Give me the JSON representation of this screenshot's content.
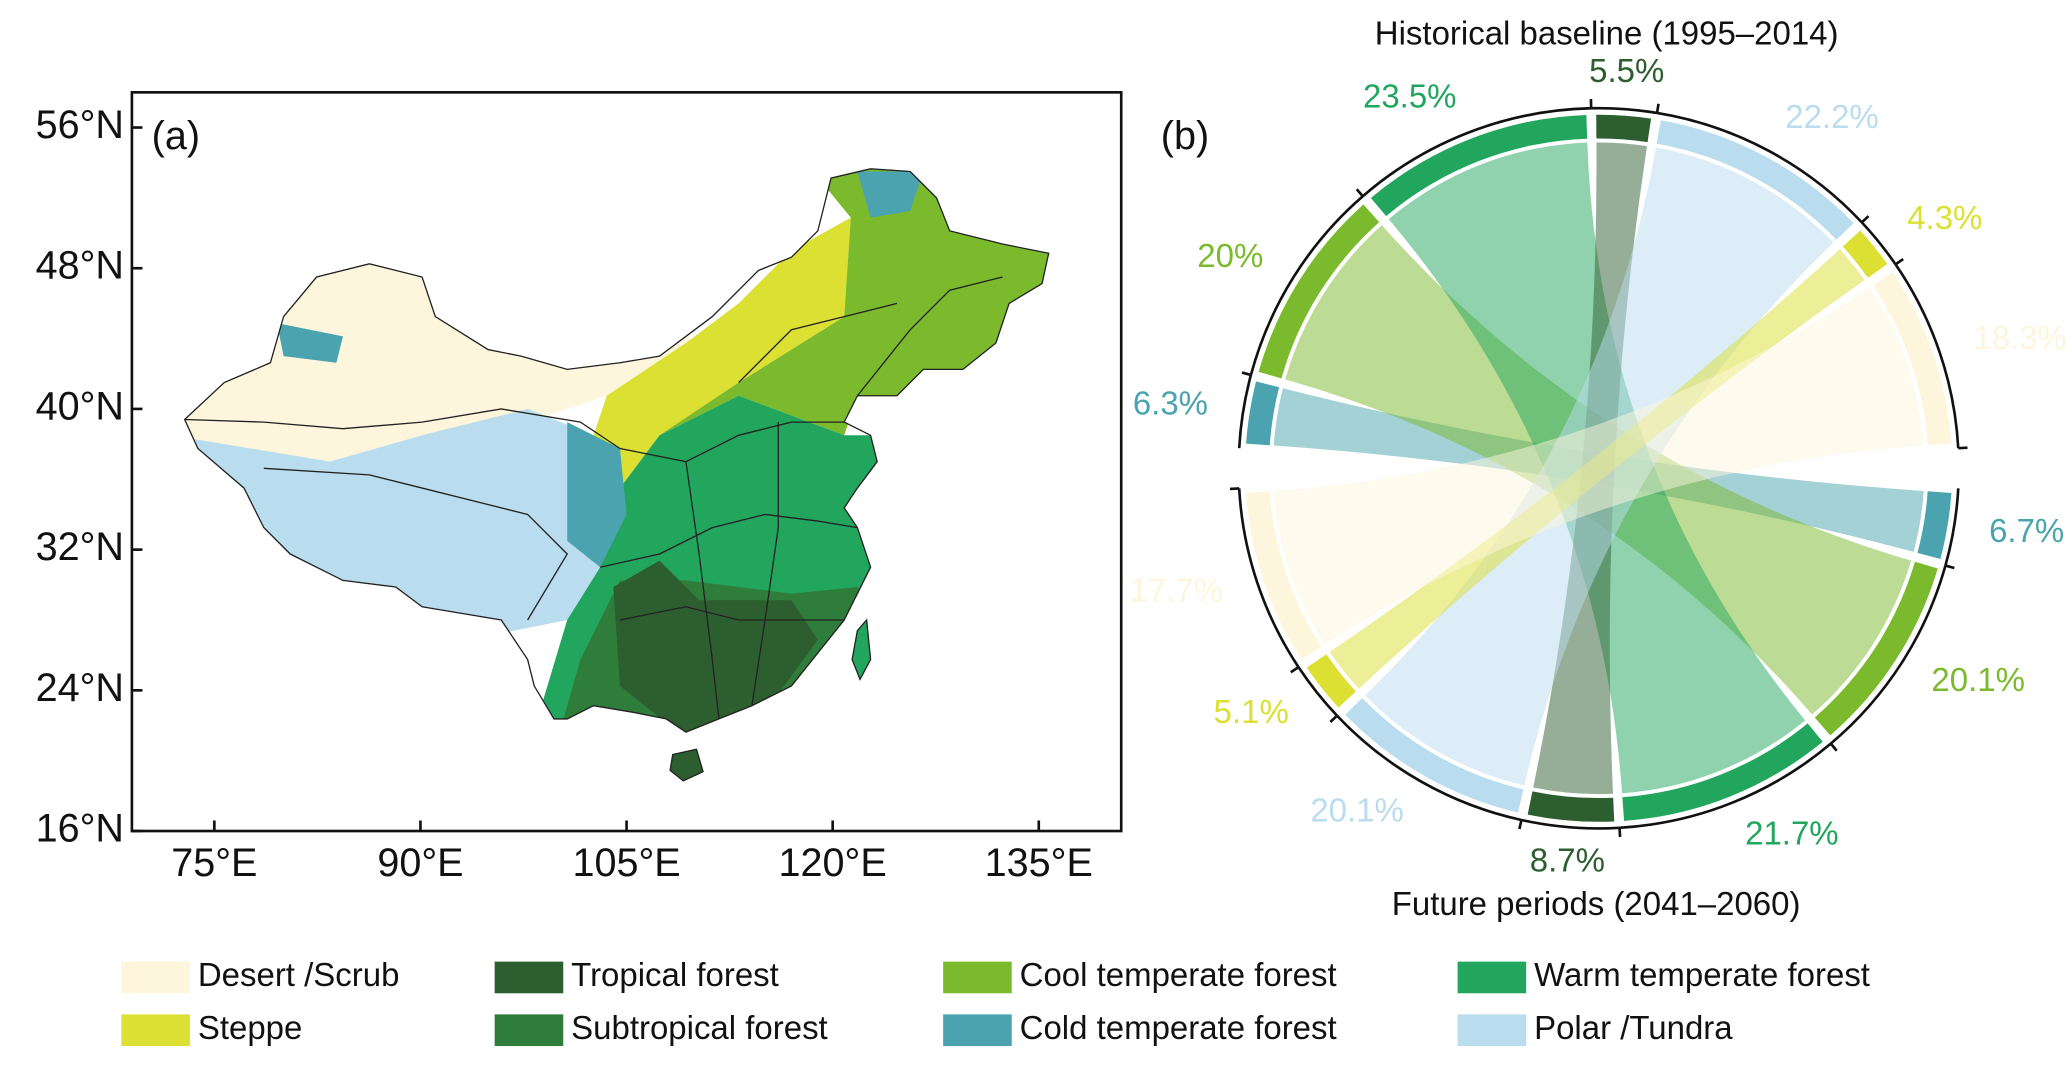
{
  "chart_data": [
    {
      "type": "map",
      "label": "(a)",
      "xlim": [
        69,
        141
      ],
      "ylim": [
        16,
        58
      ],
      "xticks": [
        {
          "value": 75,
          "label": "75°E"
        },
        {
          "value": 90,
          "label": "90°E"
        },
        {
          "value": 105,
          "label": "105°E"
        },
        {
          "value": 120,
          "label": "120°E"
        },
        {
          "value": 135,
          "label": "135°E"
        }
      ],
      "yticks": [
        {
          "value": 16,
          "label": "16°N"
        },
        {
          "value": 24,
          "label": "24°N"
        },
        {
          "value": 32,
          "label": "32°N"
        },
        {
          "value": 40,
          "label": "40°N"
        },
        {
          "value": 48,
          "label": "48°N"
        },
        {
          "value": 56,
          "label": "56°N"
        }
      ]
    },
    {
      "type": "chord",
      "label": "(b)",
      "series": [
        {
          "name": "Historical baseline (1995–2014)",
          "colors": [
            "#4aa3ae",
            "#7aba2c",
            "#22a65e",
            "#2d5e2f",
            "#b9dcef",
            "#dbe032",
            "#fdf5dc"
          ],
          "values": [
            6.3,
            20,
            23.5,
            5.5,
            22.2,
            4.3,
            18.3
          ],
          "value_labels": [
            "6.3%",
            "20%",
            "23.5%",
            "5.5%",
            "22.2%",
            "4.3%",
            "18.3%"
          ]
        },
        {
          "name": "Future periods (2041–2060)",
          "colors": [
            "#4aa3ae",
            "#7aba2c",
            "#22a65e",
            "#2d5e2f",
            "#b9dcef",
            "#dbe032",
            "#fdf5dc"
          ],
          "values": [
            6.7,
            20.1,
            21.7,
            8.7,
            20.1,
            5.1,
            17.7
          ],
          "value_labels": [
            "6.7%",
            "20.1%",
            "21.7%",
            "8.7%",
            "20.1%",
            "5.1%",
            "17.7%"
          ]
        }
      ]
    }
  ],
  "legend": {
    "categories": [
      "Desert /Scrub",
      "Steppe",
      "Tropical forest",
      "Subtropical forest",
      "Cool temperate forest",
      "Cold temperate forest",
      "Warm temperate forest",
      "Polar /Tundra"
    ],
    "colors": [
      "#fdf5dc",
      "#dbe032",
      "#2d5e2f",
      "#2e7d3a",
      "#7aba2c",
      "#4aa3ae",
      "#22a65e",
      "#b9dcef"
    ]
  }
}
